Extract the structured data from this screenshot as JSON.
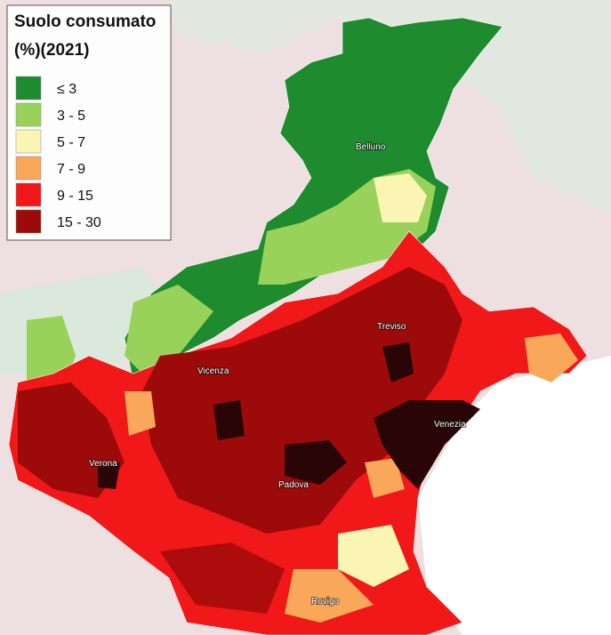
{
  "legend": {
    "title": "Suolo consumato",
    "subtitle": "(%)(2021)",
    "items": [
      {
        "label": "≤ 3",
        "color": "#1e8b2e"
      },
      {
        "label": "3 - 5",
        "color": "#98d25a"
      },
      {
        "label": "5 - 7",
        "color": "#fbf5b4"
      },
      {
        "label": "7 - 9",
        "color": "#f9a85a"
      },
      {
        "label": "9 - 15",
        "color": "#f01818"
      },
      {
        "label": "15 - 30",
        "color": "#9c0a0a"
      }
    ]
  },
  "cities": [
    {
      "label": "Belluno"
    },
    {
      "label": "Treviso"
    },
    {
      "label": "Vicenza"
    },
    {
      "label": "Venezia"
    },
    {
      "label": "Verona"
    },
    {
      "label": "Padova"
    },
    {
      "label": "Rovigo"
    }
  ]
}
